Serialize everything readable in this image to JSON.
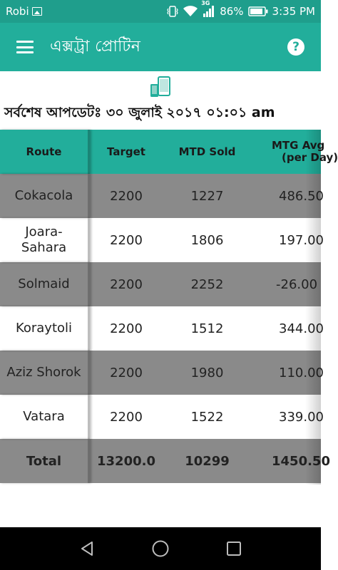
{
  "status_bar": {
    "carrier": "Robi",
    "battery": "86%",
    "network": "3G",
    "time": "3:35 PM"
  },
  "app_bar": {
    "title": "এক্সট্রা প্রোটিন"
  },
  "sync": {
    "last_update": "সর্বশেষ আপডেটঃ ৩০ জুলাই ২০১৭ ০১:০১ am"
  },
  "table": {
    "headers": {
      "route": "Route",
      "target": "Target",
      "mtd_sold": "MTD Sold",
      "mtg_avg_line1": "MTG Avg",
      "mtg_avg_line2": "(per Day)"
    },
    "rows": [
      {
        "route": "Cokacola",
        "target": "2200",
        "mtd_sold": "1227",
        "mtg_avg": "486.50"
      },
      {
        "route": "Joara-Sahara",
        "target": "2200",
        "mtd_sold": "1806",
        "mtg_avg": "197.00"
      },
      {
        "route": "Solmaid",
        "target": "2200",
        "mtd_sold": "2252",
        "mtg_avg": "-26.00"
      },
      {
        "route": "Koraytoli",
        "target": "2200",
        "mtd_sold": "1512",
        "mtg_avg": "344.00"
      },
      {
        "route": "Aziz Shorok",
        "target": "2200",
        "mtd_sold": "1980",
        "mtg_avg": "110.00"
      },
      {
        "route": "Vatara",
        "target": "2200",
        "mtd_sold": "1522",
        "mtg_avg": "339.00"
      }
    ],
    "total": {
      "route": "Total",
      "target": "13200.0",
      "mtd_sold": "10299",
      "mtg_avg": "1450.50"
    }
  },
  "colors": {
    "primary": "#22ae9b",
    "status_bar": "#1f9e8c",
    "row_grey": "#8a8a8a",
    "row_white": "#ffffff"
  }
}
